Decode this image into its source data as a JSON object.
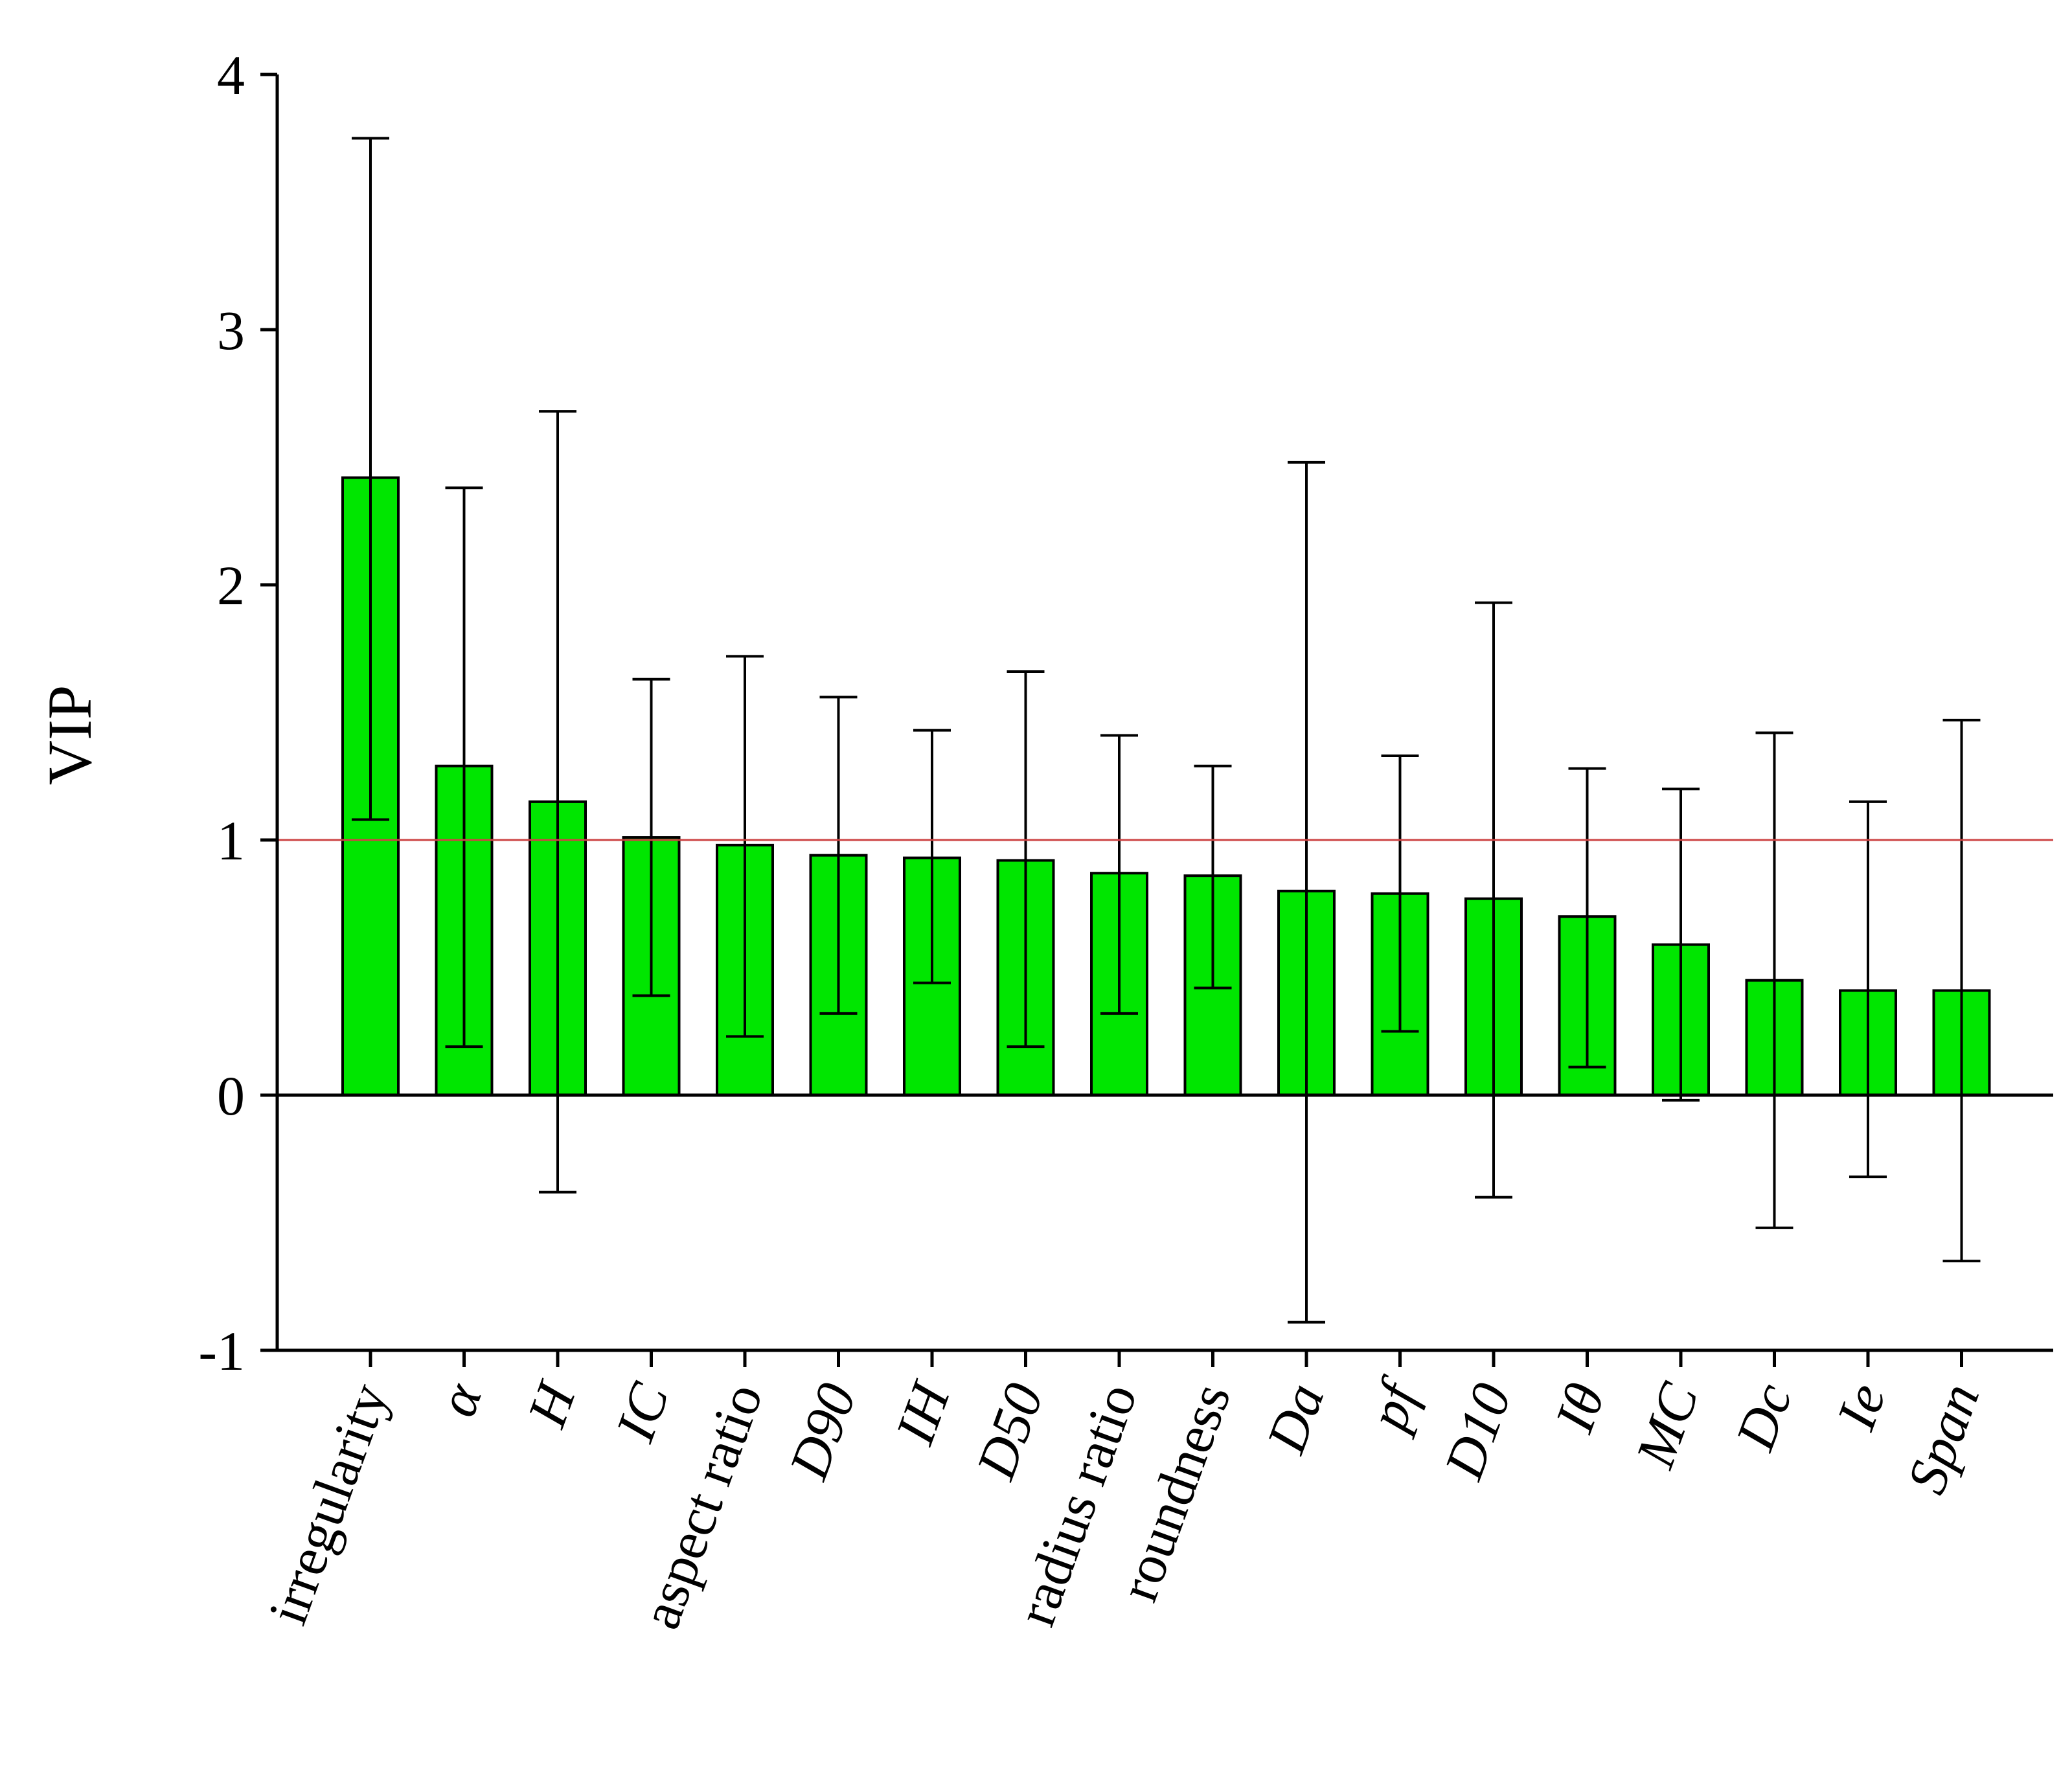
{
  "chart_data": {
    "type": "bar",
    "title": "",
    "xlabel": "",
    "ylabel": "VIP",
    "ylim": [
      -1,
      4
    ],
    "yticks": [
      -1,
      0,
      1,
      2,
      3,
      4
    ],
    "ytick_labels": [
      "-1",
      "0",
      "1",
      "2",
      "3",
      "4"
    ],
    "grid": false,
    "legend": "none",
    "bar_color": "#00e600",
    "reference_line": {
      "y": 1,
      "color": "#cc4444"
    },
    "categories": [
      "irregularity",
      "α",
      "H",
      "IC",
      "aspect ratio",
      "D90",
      "IH",
      "D50",
      "radius ratio",
      "roundness",
      "Da",
      "pf",
      "D10",
      "Iθ",
      "MC",
      "Dc",
      "Ie",
      "Span"
    ],
    "italic_categories": [
      "α",
      "H",
      "IC",
      "D90",
      "IH",
      "D50",
      "Da",
      "pf",
      "D10",
      "Iθ",
      "MC",
      "Dc",
      "Ie",
      "Span"
    ],
    "values": [
      2.42,
      1.29,
      1.15,
      1.01,
      0.98,
      0.94,
      0.93,
      0.92,
      0.87,
      0.86,
      0.8,
      0.79,
      0.77,
      0.7,
      0.59,
      0.45,
      0.41,
      0.41
    ],
    "error_upper": [
      3.75,
      2.38,
      2.68,
      1.63,
      1.72,
      1.56,
      1.43,
      1.66,
      1.41,
      1.29,
      2.48,
      1.33,
      1.93,
      1.28,
      1.2,
      1.42,
      1.15,
      1.47
    ],
    "error_lower": [
      1.08,
      0.19,
      -0.38,
      0.39,
      0.23,
      0.32,
      0.44,
      0.19,
      0.32,
      0.42,
      -0.89,
      0.25,
      -0.4,
      0.11,
      -0.02,
      -0.52,
      -0.32,
      -0.65
    ]
  }
}
